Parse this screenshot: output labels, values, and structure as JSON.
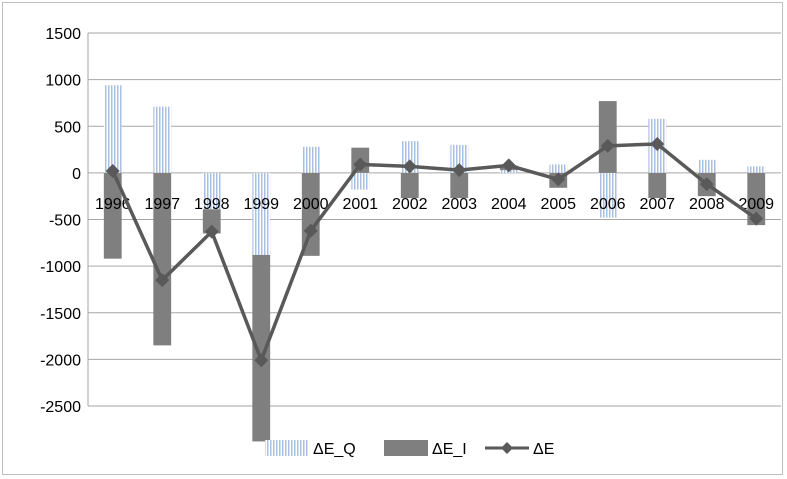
{
  "chart_data": {
    "type": "bar",
    "categories": [
      "1996",
      "1997",
      "1998",
      "1999",
      "2000",
      "2001",
      "2002",
      "2003",
      "2004",
      "2005",
      "2006",
      "2007",
      "2008",
      "2009"
    ],
    "series": [
      {
        "name": "ΔE_Q",
        "kind": "bar",
        "style": "dotted-light-blue",
        "color": "#a7bedf",
        "values": [
          940,
          710,
          -390,
          -880,
          280,
          -180,
          340,
          300,
          30,
          90,
          -480,
          580,
          140,
          70
        ]
      },
      {
        "name": "ΔE_I",
        "kind": "bar",
        "style": "solid-gray",
        "color": "#7f7f7f",
        "values": [
          -920,
          -1850,
          -260,
          -2000,
          -890,
          270,
          -270,
          -270,
          50,
          -160,
          770,
          -270,
          -250,
          -560
        ]
      },
      {
        "name": "ΔE",
        "kind": "line",
        "marker": "diamond",
        "color": "#595959",
        "values": [
          20,
          -1150,
          -630,
          -2010,
          -620,
          90,
          70,
          30,
          80,
          -70,
          290,
          310,
          -120,
          -490
        ]
      }
    ],
    "y_ticks": [
      "1500",
      "1000",
      "500",
      "0",
      "-500",
      "-1000",
      "-1500",
      "-2000",
      "-2500"
    ],
    "ylim": [
      -2500,
      1500
    ],
    "grid": true,
    "legend_position": "bottom-center",
    "title": "",
    "xlabel": "",
    "ylabel": ""
  }
}
